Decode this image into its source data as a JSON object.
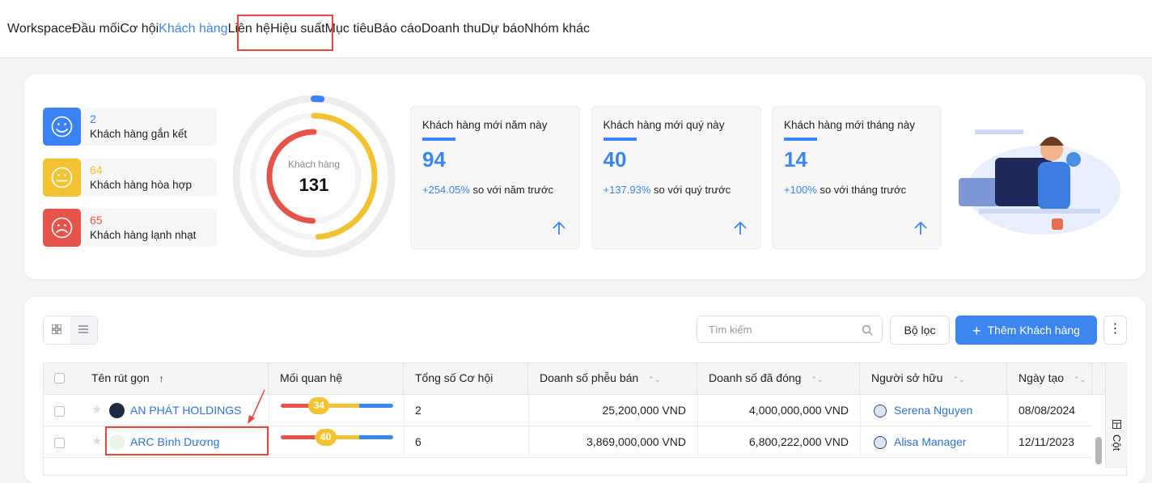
{
  "nav": {
    "tabs": [
      "Workspace",
      "Đầu mối",
      "Cơ hội",
      "Khách hàng",
      "Liên hệ",
      "Hiệu suất",
      "Mục tiêu",
      "Báo cáo",
      "Doanh thu",
      "Dự báo",
      "Nhóm khác"
    ],
    "active": 3
  },
  "summary": {
    "groups": [
      {
        "count": 2,
        "label": "Khách hàng gắn kết",
        "color": "#3b82f6"
      },
      {
        "count": 64,
        "label": "Khách hàng hòa hợp",
        "color": "#f1c232"
      },
      {
        "count": 65,
        "label": "Khách hàng lạnh nhạt",
        "color": "#e5534b"
      }
    ],
    "donut_label": "Khách hàng",
    "total": 131
  },
  "cards": [
    {
      "title": "Khách hàng mới năm này",
      "value": "94",
      "change": "+254.05%",
      "suffix": "so với năm trước"
    },
    {
      "title": "Khách hàng mới quý này",
      "value": "40",
      "change": "+137.93%",
      "suffix": "so với quý trước"
    },
    {
      "title": "Khách hàng mới tháng này",
      "value": "14",
      "change": "+100%",
      "suffix": "so với tháng trước"
    }
  ],
  "toolbar": {
    "search": "Tìm kiếm",
    "filter": "Bộ lọc",
    "add": "Thêm Khách hàng"
  },
  "table": {
    "columns": [
      "Tên rút gọn",
      "Mối quan hệ",
      "Tổng số Cơ hội",
      "Doanh số phễu bán",
      "Doanh số đã đóng",
      "Người sở hữu",
      "Ngày tạo"
    ],
    "rows": [
      {
        "name": "AN PHÁT HOLDINGS",
        "relationship": 34,
        "opportunities": "2",
        "pipeline": "25,200,000 VND",
        "closed": "4,000,000,000 VND",
        "owner": "Serena Nguyen",
        "created": "08/08/2024"
      },
      {
        "name": "ARC Bình Dương",
        "relationship": 40,
        "opportunities": "6",
        "pipeline": "3,869,000,000 VND",
        "closed": "6,800,222,000 VND",
        "owner": "Alisa Manager",
        "created": "12/11/2023"
      }
    ],
    "side": "Cột"
  }
}
